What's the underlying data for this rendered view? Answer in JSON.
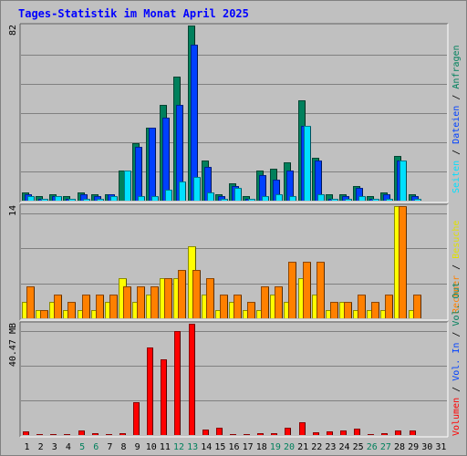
{
  "title": "Tages-Statistik im Monat April 2025",
  "colors": {
    "frame_bg": "#C0C0C0",
    "title_text": "#0000FF",
    "anfragen": "#00805C",
    "dateien": "#0040FF",
    "seiten": "#00E0FF",
    "besuche": "#FFFF00",
    "rechner": "#FF8000",
    "volumen": "#FF0000",
    "weekend_label": "#00805C"
  },
  "right_legend": {
    "anfragen": "Anfragen",
    "dateien": "Dateien",
    "seiten": "Seiten",
    "besuche": "Besuche",
    "rechner": "Rechner",
    "volumen": "Volumen",
    "vol_in": "Vol. In",
    "vol_out": "Vol. Out",
    "sep": "/"
  },
  "y_labels": {
    "top": "82",
    "middle": "14",
    "bottom": "40.47 MB"
  },
  "chart_data": {
    "type": "bar",
    "categories": [
      "1",
      "2",
      "3",
      "4",
      "5",
      "6",
      "7",
      "8",
      "9",
      "10",
      "11",
      "12",
      "13",
      "14",
      "15",
      "16",
      "17",
      "18",
      "19",
      "20",
      "21",
      "22",
      "23",
      "24",
      "25",
      "26",
      "27",
      "28",
      "29",
      "30",
      "31"
    ],
    "weekend_days": [
      "5",
      "6",
      "12",
      "13",
      "19",
      "20",
      "26",
      "27"
    ],
    "panels": [
      {
        "ymax": 82,
        "series": [
          {
            "name": "Anfragen",
            "values": [
              4,
              2,
              3,
              2,
              4,
              3,
              3,
              14,
              27,
              34,
              45,
              58,
              82,
              19,
              3,
              8,
              2,
              14,
              15,
              18,
              47,
              20,
              3,
              3,
              7,
              2,
              4,
              21,
              3,
              0,
              0
            ]
          },
          {
            "name": "Dateien",
            "values": [
              3,
              1,
              2,
              1,
              3,
              2,
              3,
              0,
              25,
              34,
              39,
              45,
              73,
              16,
              2,
              7,
              1,
              12,
              10,
              14,
              35,
              19,
              1,
              2,
              6,
              1,
              3,
              19,
              2,
              0,
              0
            ]
          },
          {
            "name": "Seiten",
            "values": [
              2,
              1,
              2,
              1,
              1,
              1,
              2,
              14,
              2,
              2,
              5,
              9,
              11,
              4,
              1,
              6,
              1,
              2,
              3,
              2,
              35,
              3,
              1,
              1,
              2,
              1,
              1,
              19,
              1,
              0,
              0
            ]
          }
        ]
      },
      {
        "ymax": 14,
        "series": [
          {
            "name": "Besuche",
            "values": [
              2,
              1,
              2,
              1,
              1,
              1,
              2,
              5,
              2,
              3,
              5,
              5,
              9,
              3,
              1,
              2,
              1,
              1,
              3,
              2,
              5,
              3,
              1,
              2,
              1,
              1,
              1,
              14,
              1,
              0,
              0
            ]
          },
          {
            "name": "Rechner",
            "values": [
              4,
              1,
              3,
              2,
              3,
              3,
              3,
              4,
              4,
              4,
              5,
              6,
              6,
              5,
              3,
              3,
              2,
              4,
              4,
              7,
              7,
              7,
              2,
              2,
              3,
              2,
              3,
              14,
              3,
              0,
              0
            ]
          }
        ]
      },
      {
        "ymax": 40.47,
        "unit": "MB",
        "series": [
          {
            "name": "Volumen",
            "values": [
              1.2,
              0.3,
              0.3,
              0.3,
              1.8,
              0.5,
              0.4,
              0.5,
              12,
              31.7,
              27.6,
              37.7,
              40.5,
              1.9,
              2.6,
              0.3,
              0.3,
              0.8,
              0.6,
              2.7,
              4.5,
              0.9,
              1.2,
              1.6,
              2.2,
              0.3,
              0.7,
              1.5,
              1.5,
              0,
              0
            ]
          }
        ]
      }
    ]
  }
}
